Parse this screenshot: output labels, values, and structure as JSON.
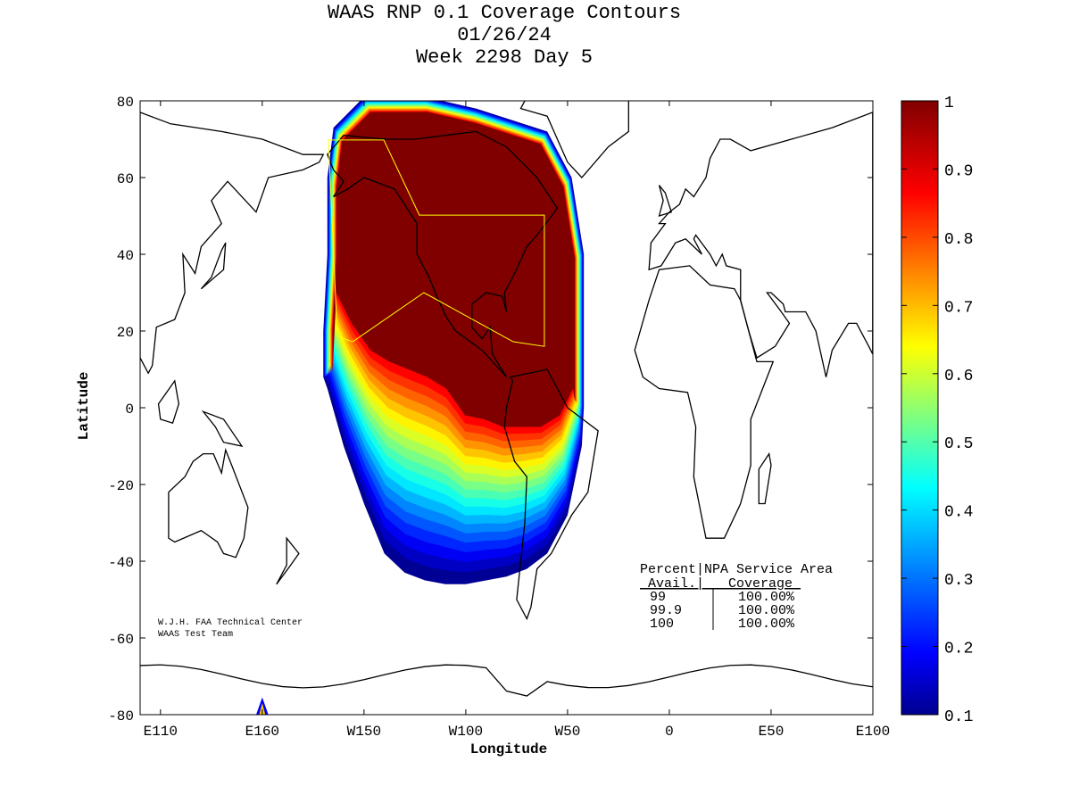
{
  "title": {
    "line1": "WAAS RNP 0.1 Coverage Contours",
    "line2": "01/26/24",
    "line3": "Week 2298 Day 5"
  },
  "axes": {
    "xlabel": "Longitude",
    "ylabel": "Latitude",
    "xticks": [
      "E110",
      "E160",
      "W150",
      "W100",
      "W50",
      "0",
      "E50",
      "E100"
    ],
    "xtick_lons": [
      110,
      160,
      210,
      260,
      310,
      360,
      410,
      460
    ],
    "yticks": [
      "80",
      "60",
      "40",
      "20",
      "0",
      "-20",
      "-40",
      "-60",
      "-80"
    ],
    "ylim": [
      -80,
      80
    ],
    "xlim_deg_east": [
      100,
      460
    ]
  },
  "colorbar": {
    "ticks": [
      "1",
      "0.9",
      "0.8",
      "0.7",
      "0.6",
      "0.5",
      "0.4",
      "0.3",
      "0.2",
      "0.1"
    ],
    "range": [
      0.1,
      1
    ]
  },
  "credits": {
    "line1": "W.J.H. FAA Technical Center",
    "line2": "WAAS Test Team"
  },
  "table": {
    "header1": "Percent|NPA Service Area",
    "header2": " Avail.|   Coverage ",
    "rows": [
      {
        "avail": "99",
        "coverage": "100.00%"
      },
      {
        "avail": "99.9",
        "coverage": "100.00%"
      },
      {
        "avail": "100",
        "coverage": "100.00%"
      }
    ]
  },
  "colors": {
    "service_area": "#ffff00",
    "coast": "#000000"
  }
}
